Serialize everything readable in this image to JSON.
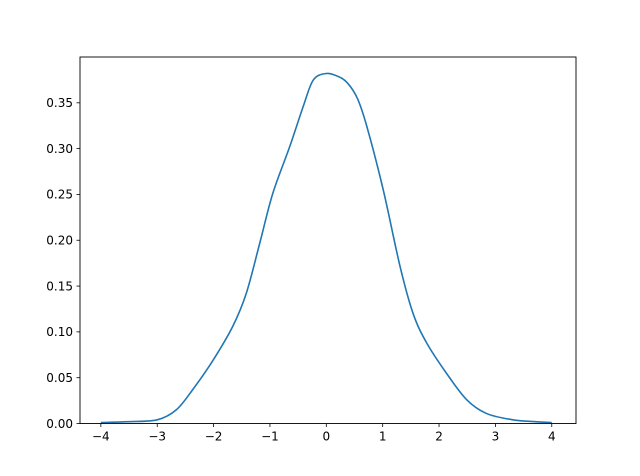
{
  "chart_data": {
    "type": "line",
    "title": "",
    "xlabel": "",
    "ylabel": "",
    "xlim": [
      -4.37,
      4.43
    ],
    "ylim": [
      0,
      0.4
    ],
    "grid": false,
    "line_color": "#1f77b4",
    "x_ticks": [
      -4,
      -3,
      -2,
      -1,
      0,
      1,
      2,
      3,
      4
    ],
    "x_tick_labels": [
      "−4",
      "−3",
      "−2",
      "−1",
      "0",
      "1",
      "2",
      "3",
      "4"
    ],
    "y_ticks": [
      0,
      0.05,
      0.1,
      0.15,
      0.2,
      0.25,
      0.3,
      0.35
    ],
    "y_tick_labels": [
      "0.00",
      "0.05",
      "0.10",
      "0.15",
      "0.20",
      "0.25",
      "0.30",
      "0.35"
    ],
    "series": [
      {
        "x": [
          -4.0,
          -3.5,
          -3.0,
          -2.66,
          -2.37,
          -2.01,
          -1.66,
          -1.42,
          -1.18,
          -0.95,
          -0.65,
          -0.41,
          -0.23,
          0.0,
          0.2,
          0.37,
          0.55,
          0.72,
          1.01,
          1.31,
          1.54,
          1.78,
          2.13,
          2.49,
          2.84,
          3.31,
          3.7,
          4.0
        ],
        "y": [
          0.001,
          0.002,
          0.004,
          0.015,
          0.037,
          0.069,
          0.106,
          0.142,
          0.197,
          0.251,
          0.302,
          0.346,
          0.375,
          0.382,
          0.379,
          0.372,
          0.355,
          0.324,
          0.255,
          0.171,
          0.12,
          0.088,
          0.055,
          0.026,
          0.011,
          0.004,
          0.002,
          0.001
        ]
      }
    ]
  }
}
